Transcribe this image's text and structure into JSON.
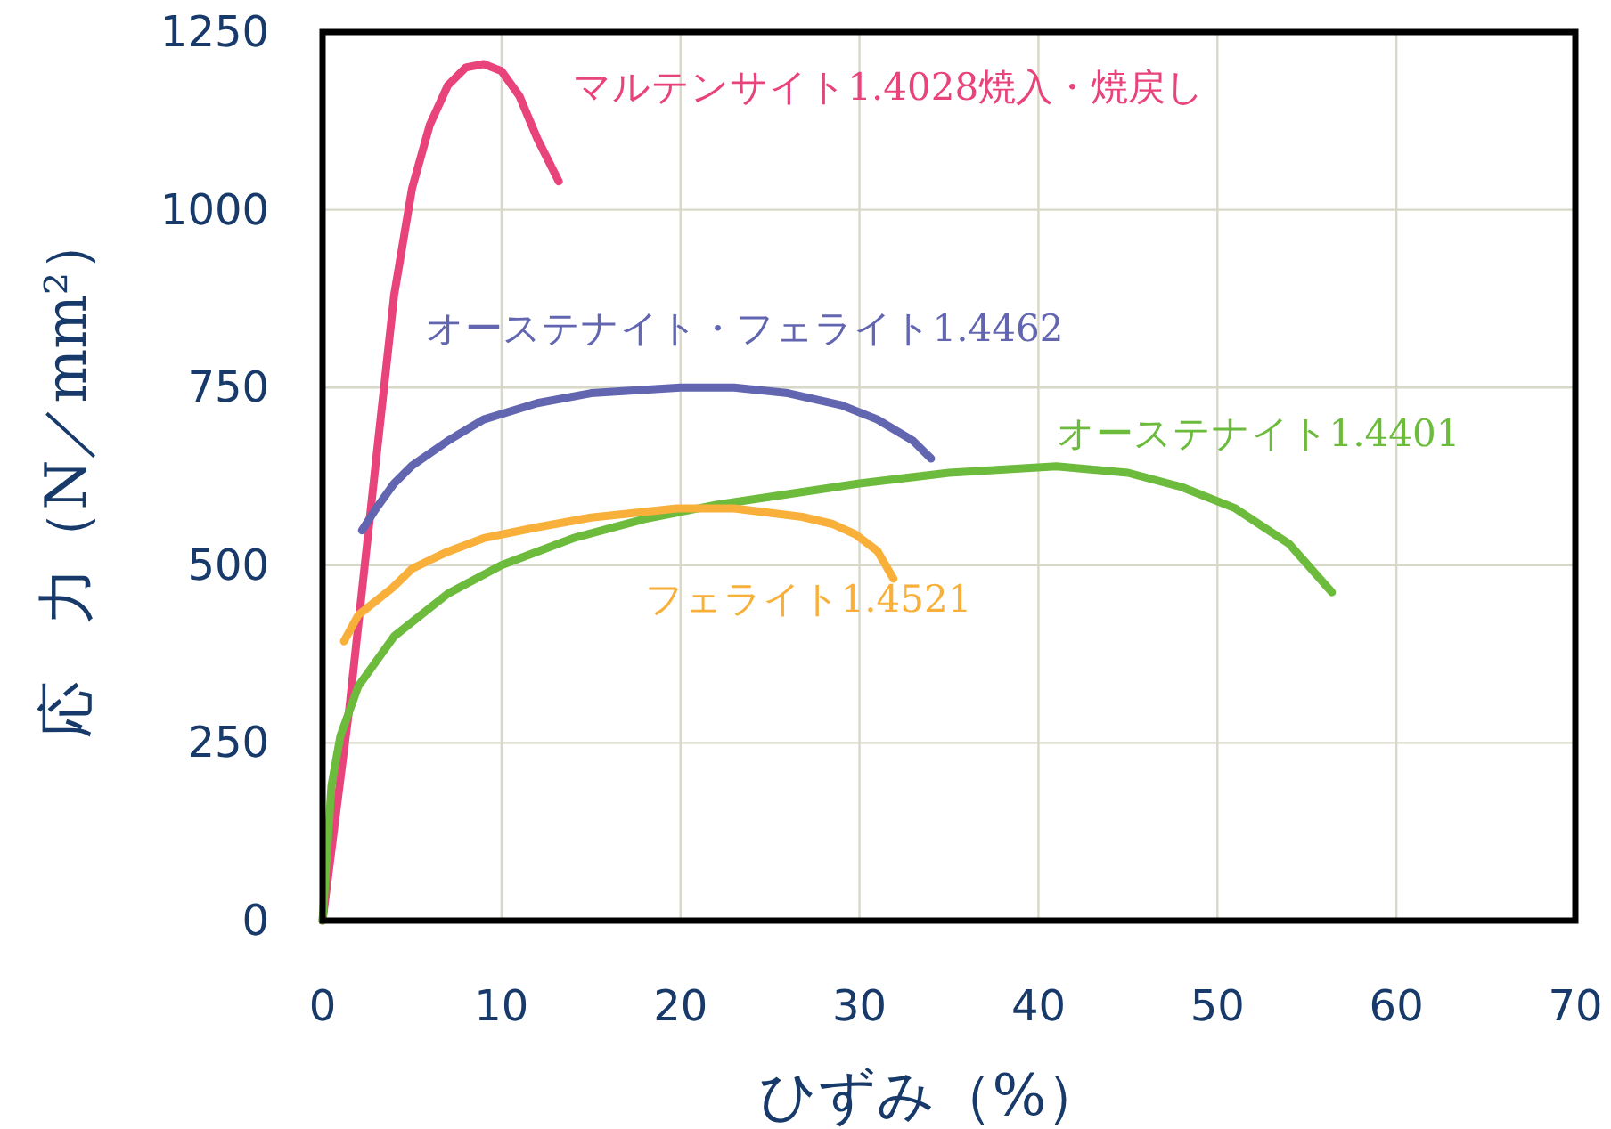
{
  "chart_data": {
    "type": "line",
    "xlabel": "ひずみ（%）",
    "ylabel": "応　力（N／mm²）",
    "xlim": [
      0,
      70
    ],
    "ylim": [
      0,
      1250
    ],
    "xticks": [
      0,
      10,
      20,
      30,
      40,
      50,
      60,
      70
    ],
    "yticks": [
      0,
      250,
      500,
      750,
      1000,
      1250
    ],
    "grid": true,
    "marker": "none",
    "line_style": "solid",
    "series": [
      {
        "name": "マルテンサイト1.4028焼入・焼戻し",
        "color": "#e8437b",
        "x": [
          0,
          1.5,
          3,
          4,
          5,
          6,
          7,
          8,
          9,
          10,
          11,
          12,
          13.2
        ],
        "values": [
          0,
          300,
          650,
          880,
          1030,
          1120,
          1175,
          1200,
          1205,
          1195,
          1160,
          1100,
          1040
        ]
      },
      {
        "name": "オーステナイト・フェライト1.4462",
        "color": "#6266b0",
        "x": [
          2.2,
          3,
          4,
          5,
          7,
          9,
          12,
          15,
          20,
          23,
          26,
          29,
          31,
          33,
          34
        ],
        "values": [
          549,
          580,
          615,
          640,
          675,
          705,
          728,
          742,
          750,
          750,
          742,
          725,
          705,
          675,
          650
        ]
      },
      {
        "name": "オーステナイト1.4401",
        "color": "#6dbb3c",
        "x": [
          0,
          0.5,
          1,
          2,
          4,
          7,
          10,
          14,
          18,
          22,
          26,
          30,
          35,
          41,
          45,
          48,
          51,
          54,
          56.4
        ],
        "values": [
          0,
          190,
          260,
          330,
          400,
          460,
          500,
          538,
          565,
          585,
          600,
          615,
          630,
          639,
          630,
          610,
          580,
          530,
          462
        ]
      },
      {
        "name": "フェライト1.4521",
        "color": "#f9b03a",
        "x": [
          1.2,
          2,
          3.9,
          5,
          6.9,
          9,
          11.9,
          15,
          19.8,
          23,
          26.8,
          28.5,
          29.8,
          31,
          31.9
        ],
        "values": [
          393,
          430,
          468,
          495,
          518,
          538,
          553,
          567,
          580,
          580,
          568,
          558,
          543,
          520,
          481
        ]
      }
    ]
  }
}
